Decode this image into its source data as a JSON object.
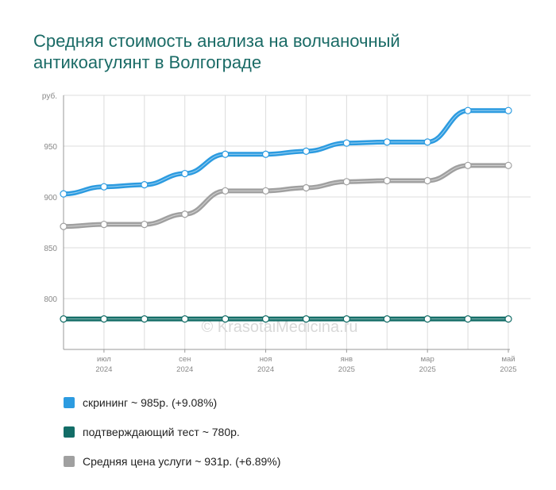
{
  "chart_data": {
    "type": "line",
    "title_lines": [
      "Средняя стоимость анализа на волчаночный",
      "антикоагулянт в Волгограде"
    ],
    "y_unit": "руб.",
    "ylim": [
      750,
      1000
    ],
    "y_ticks": [
      800,
      850,
      900,
      950
    ],
    "x_ticks": [
      {
        "index": 1,
        "line1": "июл",
        "line2": "2024"
      },
      {
        "index": 3,
        "line1": "сен",
        "line2": "2024"
      },
      {
        "index": 5,
        "line1": "ноя",
        "line2": "2024"
      },
      {
        "index": 7,
        "line1": "янв",
        "line2": "2025"
      },
      {
        "index": 9,
        "line1": "мар",
        "line2": "2025"
      },
      {
        "index": 11,
        "line1": "май",
        "line2": "2025"
      }
    ],
    "grid": true,
    "watermark": "© KrasotaiMedicina.ru",
    "series": [
      {
        "name": "скрининг",
        "color": "#2c9be0",
        "values": [
          903,
          910,
          912,
          923,
          942,
          942,
          945,
          953,
          954,
          954,
          985,
          985
        ]
      },
      {
        "name": "Средняя цена услуги",
        "color": "#a0a0a0",
        "values": [
          871,
          873,
          873,
          883,
          906,
          906,
          909,
          915,
          916,
          916,
          931,
          931
        ]
      },
      {
        "name": "подтверждающий тест",
        "color": "#136d67",
        "values": [
          780,
          780,
          780,
          780,
          780,
          780,
          780,
          780,
          780,
          780,
          780,
          780
        ]
      }
    ]
  },
  "legend": [
    {
      "color": "#2c9be0",
      "text": "скрининг ~ 985р. (+9.08%)"
    },
    {
      "color": "#136d67",
      "text": "подтверждающий тест ~ 780р."
    },
    {
      "color": "#a0a0a0",
      "text": "Средняя цена услуги ~ 931р. (+6.89%)"
    }
  ]
}
